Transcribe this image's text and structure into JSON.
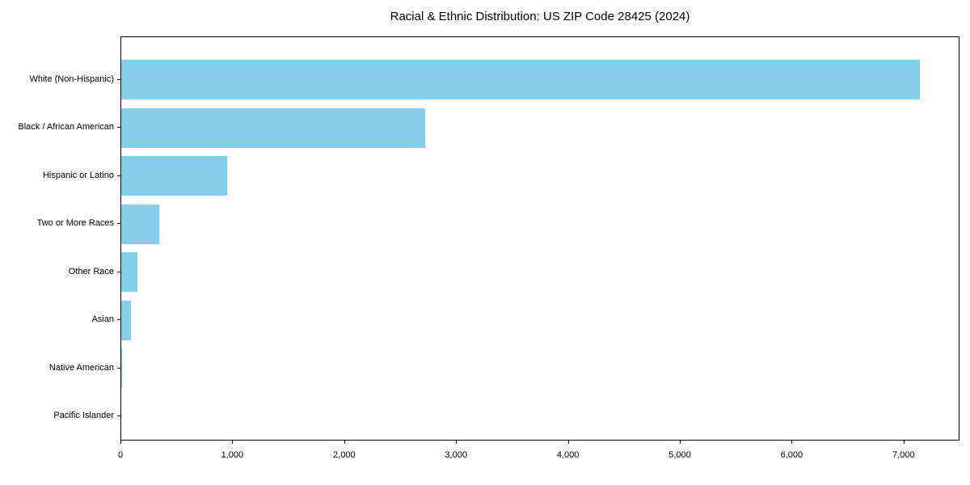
{
  "chart_data": {
    "type": "bar",
    "orientation": "horizontal",
    "title": "Racial & Ethnic Distribution: US ZIP Code 28425 (2024)",
    "categories": [
      "White (Non-Hispanic)",
      "Black / African American",
      "Hispanic or Latino",
      "Two or More Races",
      "Other Race",
      "Asian",
      "Native American",
      "Pacific Islander"
    ],
    "values": [
      7140,
      2720,
      950,
      340,
      145,
      85,
      10,
      0
    ],
    "xlabel": "",
    "ylabel": "",
    "xlim": [
      0,
      7500
    ],
    "x_ticks": [
      0,
      1000,
      2000,
      3000,
      4000,
      5000,
      6000,
      7000
    ],
    "x_tick_labels": [
      "0",
      "1,000",
      "2,000",
      "3,000",
      "4,000",
      "5,000",
      "6,000",
      "7,000"
    ],
    "bar_color": "#87CEEB",
    "axis_color": "#000000",
    "background_color": "#ffffff",
    "grid": false,
    "legend_position": "none",
    "frame": true
  }
}
